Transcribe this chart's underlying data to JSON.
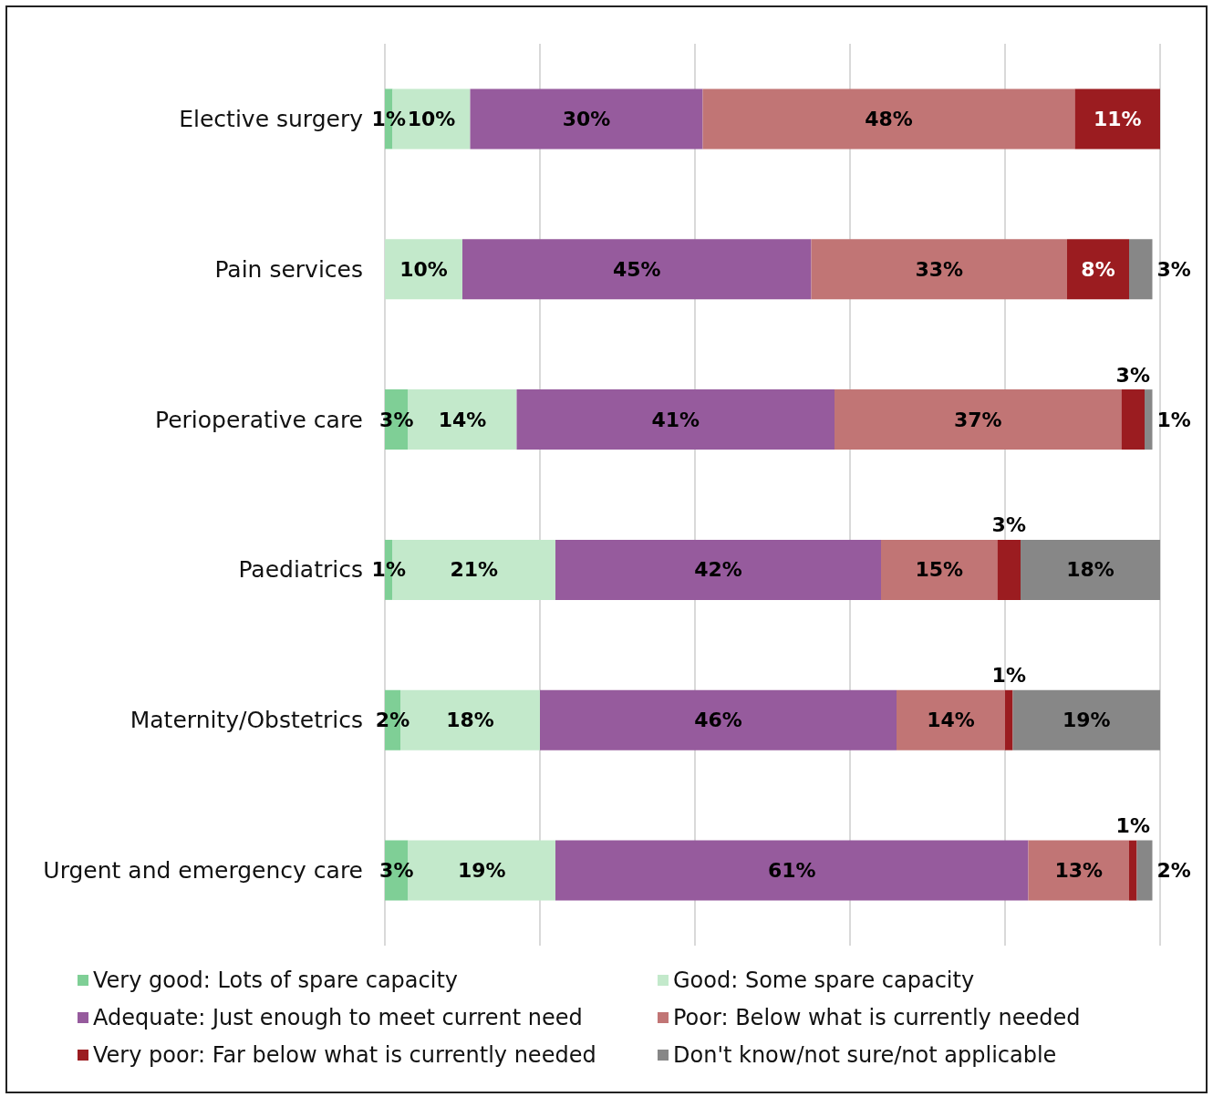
{
  "chart_data": {
    "type": "bar",
    "orientation": "horizontal",
    "stacked": true,
    "categories": [
      "Elective surgery",
      "Pain services",
      "Perioperative care",
      "Paediatrics",
      "Maternity/Obstetrics",
      "Urgent and emergency care"
    ],
    "series": [
      {
        "name": "Very good: Lots of spare capacity",
        "color": "#7fcf96",
        "values": [
          1,
          null,
          3,
          1,
          2,
          3
        ],
        "value_labels": [
          "1%",
          null,
          "3%",
          "1%",
          "2%",
          "3%"
        ]
      },
      {
        "name": "Good: Some spare capacity",
        "color": "#c3e9cb",
        "values": [
          10,
          10,
          14,
          21,
          18,
          19
        ],
        "value_labels": [
          "10%",
          "10%",
          "14%",
          "21%",
          "18%",
          "19%"
        ]
      },
      {
        "name": "Adequate: Just enough to meet current need",
        "color": "#965b9d",
        "values": [
          30,
          45,
          41,
          42,
          46,
          61
        ],
        "value_labels": [
          "30%",
          "45%",
          "41%",
          "42%",
          "46%",
          "61%"
        ]
      },
      {
        "name": "Poor: Below what is currently needed",
        "color": "#c17575",
        "values": [
          48,
          33,
          37,
          15,
          14,
          13
        ],
        "value_labels": [
          "48%",
          "33%",
          "37%",
          "15%",
          "14%",
          "13%"
        ]
      },
      {
        "name": "Very poor: Far below what is currently needed",
        "color": "#9b1c20",
        "values": [
          11,
          8,
          3,
          3,
          1,
          1
        ],
        "value_labels": [
          "11%",
          "8%",
          "3%",
          "3%",
          "1%",
          "1%"
        ]
      },
      {
        "name": "Don't know/not sure/not applicable",
        "color": "#878787",
        "values": [
          null,
          3,
          1,
          18,
          19,
          2
        ],
        "value_labels": [
          null,
          "3%",
          "1%",
          "18%",
          "19%",
          "2%"
        ]
      }
    ],
    "tick_labels": "y",
    "grid": "x",
    "legend": "bottom"
  }
}
